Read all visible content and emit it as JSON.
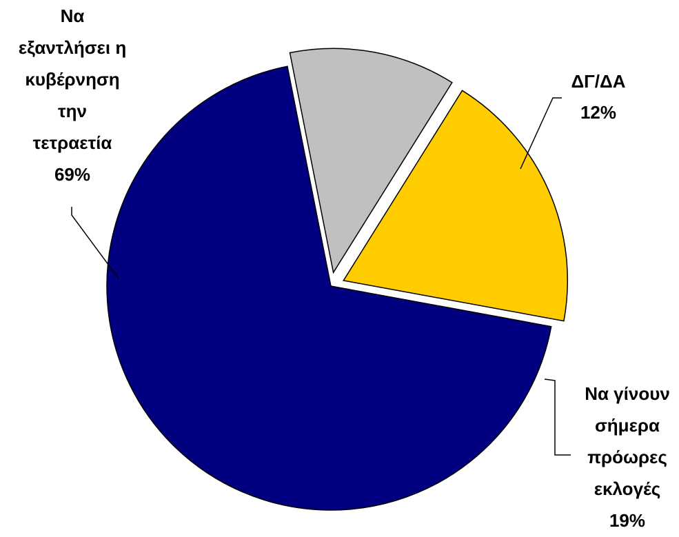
{
  "chart_data": {
    "type": "pie",
    "title": "",
    "start_angle_deg": 58,
    "direction": "clockwise",
    "exploded": true,
    "slices": [
      {
        "key": "early-elections",
        "name": "Να γίνουν σήμερα πρόωρες εκλογές",
        "label_lines": [
          "Να γίνουν",
          "σήμερα",
          "πρόωρες",
          "εκλογές",
          "19%"
        ],
        "value": 19,
        "color": "#ffcc00"
      },
      {
        "key": "complete-term",
        "name": "Να εξαντλήσει η κυβέρνηση την τετραετία",
        "label_lines": [
          "Να",
          "εξαντλήσει η",
          "κυβέρνηση",
          "την",
          "τετραετία",
          "69%"
        ],
        "value": 69,
        "color": "#000080"
      },
      {
        "key": "dk-na",
        "name": "ΔΓ/ΔΑ",
        "label_lines": [
          "ΔΓ/ΔΑ",
          "12%"
        ],
        "value": 12,
        "color": "#c0c0c0"
      }
    ]
  }
}
